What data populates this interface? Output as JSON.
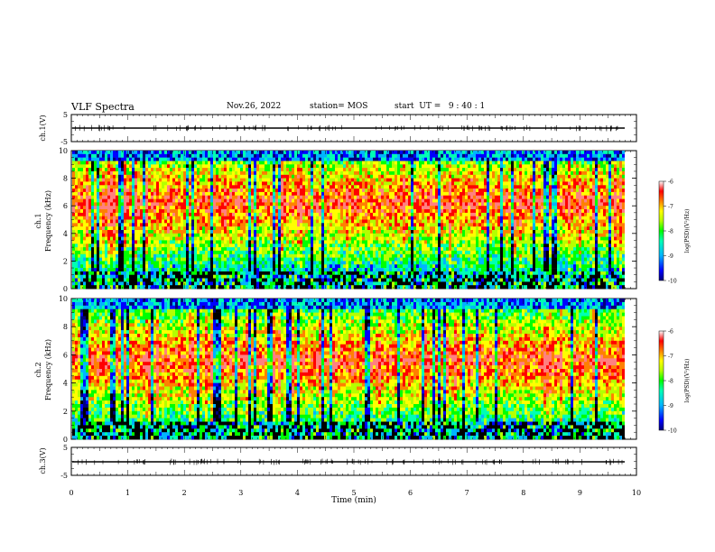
{
  "header": {
    "title": "VLF Spectra",
    "date": "Nov.26, 2022",
    "station": "station= MOS",
    "start": "start  UT =   9 : 40 : 1"
  },
  "chart_data": [
    {
      "type": "line",
      "name": "ch1-waveform",
      "ylabel": "ch.1(V)",
      "ylim": [
        -5,
        5
      ],
      "yticks": [
        "5",
        "-5"
      ],
      "xlim": [
        0,
        10
      ],
      "values_approx": 0
    },
    {
      "type": "heatmap",
      "name": "ch1-spectrogram",
      "ylabel": "ch.1\nFrequency (kHz)",
      "ylabel_line1": "ch.1",
      "ylabel_line2": "Frequency (kHz)",
      "ylim": [
        0,
        10
      ],
      "yticks": [
        "0",
        "2",
        "4",
        "6",
        "8",
        "10"
      ],
      "xlim": [
        0,
        10
      ],
      "data_end_min": 9.8,
      "colorbar": {
        "label": "log(PSD)(V²/Hz)",
        "range": [
          -10,
          -6
        ],
        "ticks": [
          "-6",
          "-7",
          "-8",
          "-9",
          "-10"
        ]
      }
    },
    {
      "type": "heatmap",
      "name": "ch2-spectrogram",
      "ylabel_line1": "ch.2",
      "ylabel_line2": "Frequency (kHz)",
      "ylim": [
        0,
        10
      ],
      "yticks": [
        "0",
        "2",
        "4",
        "6",
        "8",
        "10"
      ],
      "xlim": [
        0,
        10
      ],
      "data_end_min": 9.8,
      "colorbar": {
        "label": "log(PSD)(V²/Hz)",
        "range": [
          -10,
          -6
        ],
        "ticks": [
          "-6",
          "-7",
          "-8",
          "-9",
          "-10"
        ]
      }
    },
    {
      "type": "line",
      "name": "ch3-waveform",
      "ylabel": "ch.3(V)",
      "ylim": [
        -5,
        5
      ],
      "yticks": [
        "5",
        "-5"
      ],
      "xlim": [
        0,
        10
      ],
      "values_approx": 0
    }
  ],
  "xaxis": {
    "label": "Time  (min)",
    "ticks": [
      "0",
      "1",
      "2",
      "3",
      "4",
      "5",
      "6",
      "7",
      "8",
      "9",
      "10"
    ]
  },
  "colors": {
    "colormap": [
      "#00007a",
      "#0000ff",
      "#00b4ff",
      "#00ffb4",
      "#00ff00",
      "#b4ff00",
      "#ffff00",
      "#ff8000",
      "#ff0000",
      "#ff8080",
      "#ffffff"
    ]
  }
}
